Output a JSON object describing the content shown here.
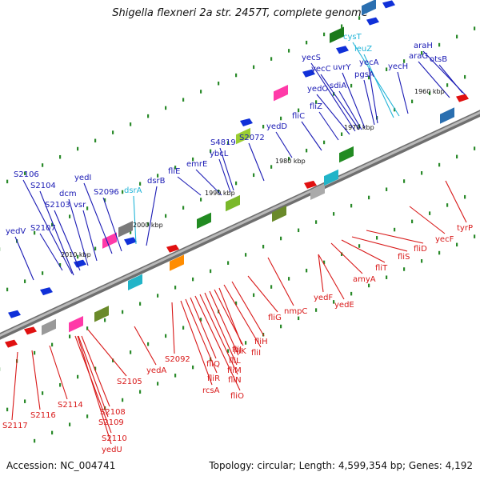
{
  "title": "Shigella flexneri 2a str. 2457T, complete genome",
  "footer": {
    "accession": "Accession: NC_004741",
    "summary": "Topology: circular; Length: 4,599,354 bp; Genes: 4,192"
  },
  "colors": {
    "forward_label": "#1a1ab4",
    "reverse_label": "#d81818",
    "rna_label": "#22b4d8",
    "backbone": "#8a8a8a",
    "tick": "#2a8a2a"
  },
  "kbp_marks": [
    "1960 kbp",
    "1970 kbp",
    "1980 kbp",
    "1990 kbp",
    "2000 kbp",
    "2010 kbp"
  ],
  "genes_forward": [
    "araH",
    "otsB",
    "cysT",
    "leuZ",
    "araG",
    "yecS",
    "yecC",
    "uvrY",
    "yecA",
    "pgsA",
    "yecH",
    "sdiA",
    "yedO",
    "fliZ",
    "fliC",
    "yedD",
    "S2072",
    "S4819",
    "ybcL",
    "emrE",
    "fliE",
    "dsrB",
    "dsrA",
    "S2106",
    "S2104",
    "S2103",
    "dcm",
    "vsr",
    "yedI",
    "S2096",
    "yedV",
    "S2107"
  ],
  "genes_reverse": [
    "tyrP",
    "yecF",
    "fliD",
    "fliS",
    "fliT",
    "amyA",
    "yedF",
    "yedE",
    "nmpC",
    "fliG",
    "fliH",
    "fliI",
    "fliJ",
    "fliK",
    "fliL",
    "fliM",
    "fliN",
    "fliO",
    "fliQ",
    "fliR",
    "rcsA",
    "S2092",
    "yedA",
    "S2105",
    "S2108",
    "S2109",
    "S2110",
    "yedU",
    "S2114",
    "S2116",
    "S2117"
  ]
}
